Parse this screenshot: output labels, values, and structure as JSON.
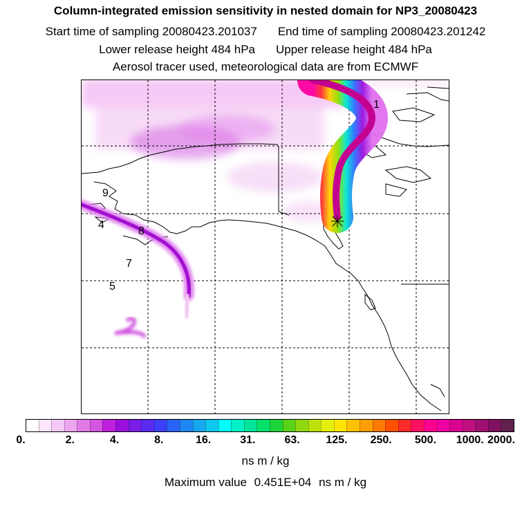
{
  "header": {
    "title": "Column-integrated emission sensitivity in nested domain for NP3_20080423",
    "start_label": "Start time of sampling 20080423.201037",
    "end_label": "End time of sampling 20080423.201242",
    "lower_label": "Lower release height  484 hPa",
    "upper_label": "Upper release height  484 hPa",
    "info": "Aerosol tracer used, meteorological data are from ECMWF"
  },
  "map": {
    "labels": [
      "1",
      "9",
      "4",
      "8",
      "7",
      "5"
    ],
    "release_marker": "star"
  },
  "colorbar": {
    "ticks": [
      "0.",
      "2.",
      "4.",
      "8.",
      "16.",
      "31.",
      "63.",
      "125.",
      "250.",
      "500.",
      "1000.",
      "2000."
    ],
    "colors": [
      "#ffffff",
      "#fbe6fb",
      "#f5c9f5",
      "#eda6ee",
      "#e27ae6",
      "#d455df",
      "#c021dc",
      "#9a10dd",
      "#7a1de7",
      "#5a2af2",
      "#3b3ff7",
      "#2a62f6",
      "#1e86f2",
      "#16a7ee",
      "#10c7f0",
      "#00ffff",
      "#00f0c8",
      "#00e49a",
      "#00e06b",
      "#1cd43a",
      "#5ad21a",
      "#8fd80e",
      "#bde20a",
      "#e4ee0c",
      "#ffe600",
      "#ffc200",
      "#ff9e00",
      "#ff7a00",
      "#ff5200",
      "#ff2a2a",
      "#ff1060",
      "#ff0090",
      "#f000a0",
      "#d8008f",
      "#c0107f",
      "#a01070",
      "#801060",
      "#602050"
    ],
    "units": "ns m / kg"
  },
  "max": {
    "label": "Maximum value",
    "value": "0.451E+04",
    "units": "ns m / kg"
  }
}
